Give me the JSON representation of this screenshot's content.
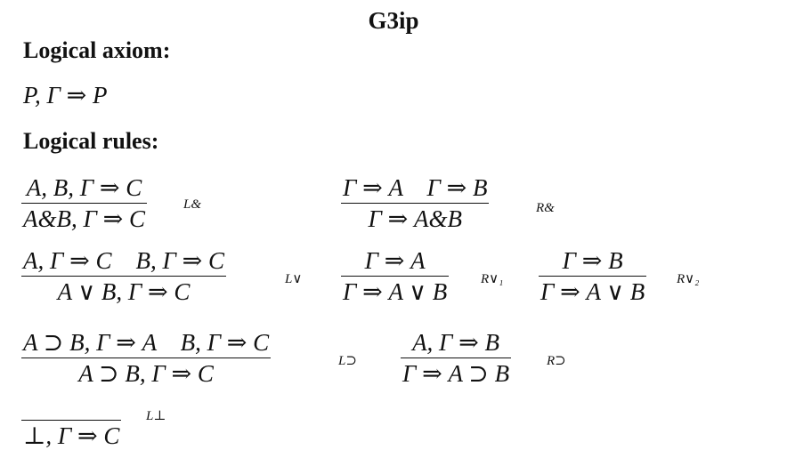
{
  "title": "G3ip",
  "headings": {
    "axiom": "Logical axiom:",
    "rules": "Logical rules:"
  },
  "axiom": "P, Γ ⇒ P",
  "rules": {
    "l_and": {
      "premise": "A, B, Γ ⇒ C",
      "conclusion": "A&B, Γ ⇒ C",
      "label": "L&"
    },
    "r_and": {
      "premise": "Γ ⇒ A    Γ ⇒ B",
      "conclusion": "Γ ⇒ A&B",
      "label": "R&"
    },
    "l_or": {
      "premise": "A, Γ ⇒ C    B, Γ ⇒ C",
      "conclusion": "A ∨ B, Γ ⇒ C",
      "label": "L∨"
    },
    "r_or1": {
      "premise": "Γ ⇒ A",
      "conclusion": "Γ ⇒ A ∨ B",
      "label": "R∨₁"
    },
    "r_or2": {
      "premise": "Γ ⇒ B",
      "conclusion": "Γ ⇒ A ∨ B",
      "label": "R∨₂"
    },
    "l_imp": {
      "premise": "A ⊃ B, Γ ⇒ A    B, Γ ⇒ C",
      "conclusion": "A ⊃ B, Γ ⇒ C",
      "label": "L⊃"
    },
    "r_imp": {
      "premise": "A, Γ ⇒ B",
      "conclusion": "Γ ⇒ A ⊃ B",
      "label": "R⊃"
    },
    "l_bot": {
      "premise": "",
      "conclusion": "⊥, Γ ⇒ C",
      "label": "L⊥"
    }
  }
}
